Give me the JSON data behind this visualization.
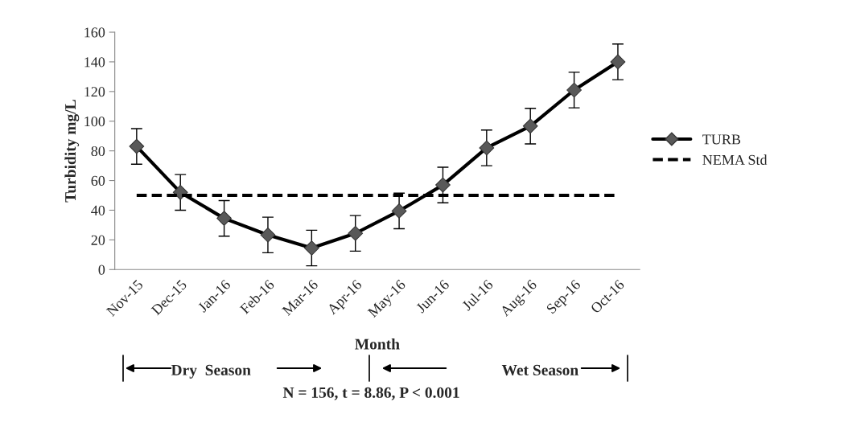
{
  "chart_data": {
    "type": "line",
    "xlabel": "Month",
    "ylabel": "Turbidity mg/L",
    "categories": [
      "Nov-15",
      "Dec-15",
      "Jan-16",
      "Feb-16",
      "Mar-16",
      "Apr-16",
      "May-16",
      "Jun-16",
      "Jul-16",
      "Aug-16",
      "Sep-16",
      "Oct-16"
    ],
    "series": [
      {
        "name": "TURB",
        "color": "#000000",
        "marker": "diamond",
        "line_style": "solid",
        "values": [
          83,
          52,
          34.5,
          23.3,
          14.5,
          24.4,
          39.5,
          57,
          82,
          96.7,
          121,
          140
        ],
        "errors": [
          12,
          12,
          12,
          12,
          12,
          12,
          12,
          12,
          12,
          12,
          12,
          12
        ]
      },
      {
        "name": "NEMA Std",
        "color": "#000000",
        "marker": "none",
        "line_style": "dashed",
        "values": [
          50,
          50,
          50,
          50,
          50,
          50,
          50,
          50,
          50,
          50,
          50,
          50
        ]
      }
    ],
    "ylim": [
      0,
      160
    ],
    "yticks": [
      0,
      20,
      40,
      60,
      80,
      100,
      120,
      140,
      160
    ],
    "grid": false,
    "legend": "right",
    "annotations": [
      "Dry  Season",
      "Wet Season",
      "N = 156, t = 8.86, P < 0.001"
    ]
  }
}
